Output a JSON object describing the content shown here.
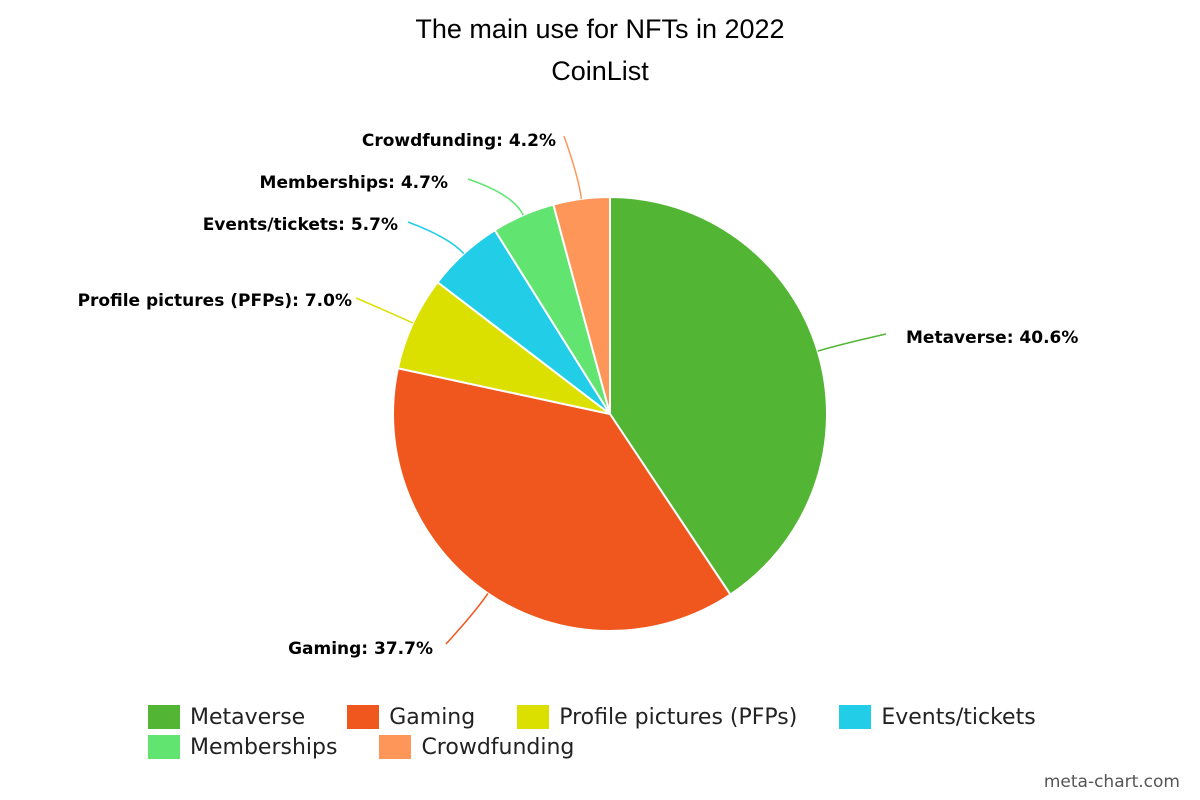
{
  "chart_data": {
    "type": "pie",
    "title": "The main use for NFTs in 2022",
    "subtitle": "CoinList",
    "slices": [
      {
        "name": "Metaverse",
        "value": 40.6,
        "label": "Metaverse: 40.6%",
        "color": "#52b533"
      },
      {
        "name": "Gaming",
        "value": 37.7,
        "label": "Gaming: 37.7%",
        "color": "#ef571e"
      },
      {
        "name": "Profile pictures (PFPs)",
        "value": 7.0,
        "label": "Profile pictures (PFPs): 7.0%",
        "color": "#dce000"
      },
      {
        "name": "Events/tickets",
        "value": 5.7,
        "label": "Events/tickets: 5.7%",
        "color": "#22cde8"
      },
      {
        "name": "Memberships",
        "value": 4.7,
        "label": "Memberships: 4.7%",
        "color": "#62e470"
      },
      {
        "name": "Crowdfunding",
        "value": 4.2,
        "label": "Crowdfunding: 4.2%",
        "color": "#ff9659"
      }
    ],
    "legend_position": "bottom"
  },
  "credit": "meta-chart.com"
}
